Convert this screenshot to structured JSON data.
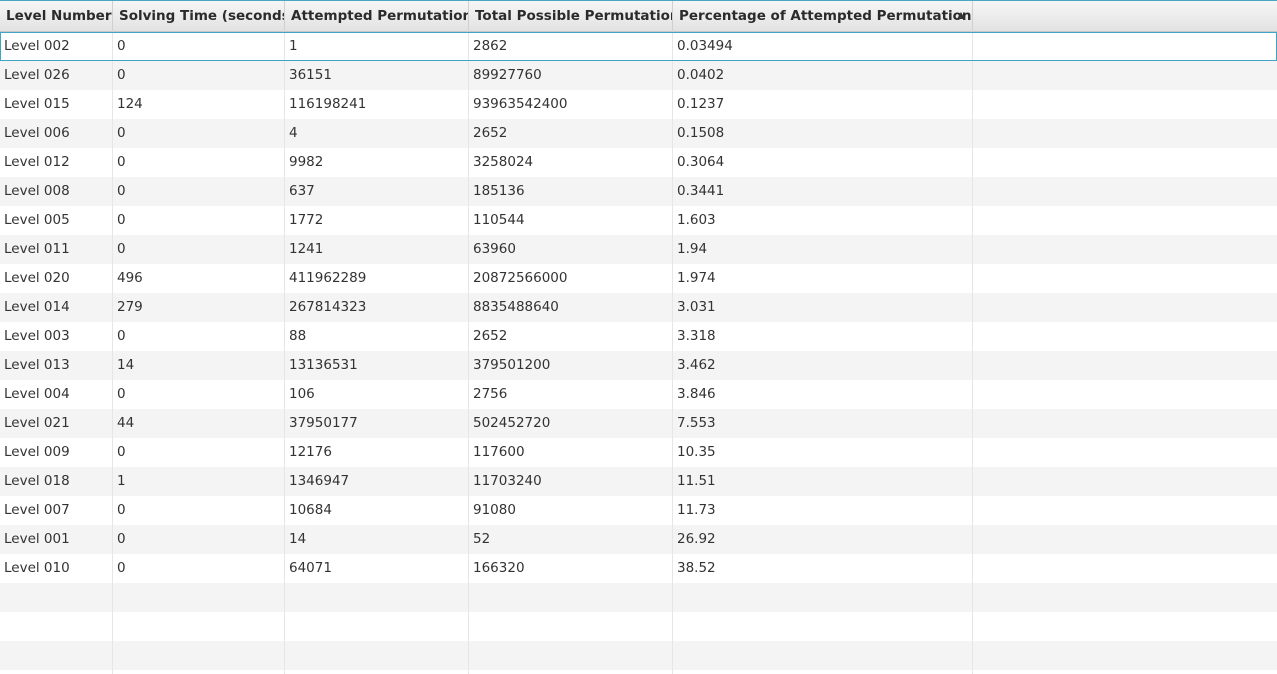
{
  "table": {
    "columns": [
      "Level Number",
      "Solving Time (seconds)",
      "Attempted Permutations",
      "Total Possible Permutations",
      "Percentage of Attempted Permutations"
    ],
    "sorted_column": "Percentage of Attempted Permutations",
    "sort_direction": "ascending",
    "selected_row": "Level 002",
    "rows": [
      [
        "Level 002",
        "0",
        "1",
        "2862",
        "0.03494"
      ],
      [
        "Level 026",
        "0",
        "36151",
        "89927760",
        "0.0402"
      ],
      [
        "Level 015",
        "124",
        "116198241",
        "93963542400",
        "0.1237"
      ],
      [
        "Level 006",
        "0",
        "4",
        "2652",
        "0.1508"
      ],
      [
        "Level 012",
        "0",
        "9982",
        "3258024",
        "0.3064"
      ],
      [
        "Level 008",
        "0",
        "637",
        "185136",
        "0.3441"
      ],
      [
        "Level 005",
        "0",
        "1772",
        "110544",
        "1.603"
      ],
      [
        "Level 011",
        "0",
        "1241",
        "63960",
        "1.94"
      ],
      [
        "Level 020",
        "496",
        "411962289",
        "20872566000",
        "1.974"
      ],
      [
        "Level 014",
        "279",
        "267814323",
        "8835488640",
        "3.031"
      ],
      [
        "Level 003",
        "0",
        "88",
        "2652",
        "3.318"
      ],
      [
        "Level 013",
        "14",
        "13136531",
        "379501200",
        "3.462"
      ],
      [
        "Level 004",
        "0",
        "106",
        "2756",
        "3.846"
      ],
      [
        "Level 021",
        "44",
        "37950177",
        "502452720",
        "7.553"
      ],
      [
        "Level 009",
        "0",
        "12176",
        "117600",
        "10.35"
      ],
      [
        "Level 018",
        "1",
        "1346947",
        "11703240",
        "11.51"
      ],
      [
        "Level 007",
        "0",
        "10684",
        "91080",
        "11.73"
      ],
      [
        "Level 001",
        "0",
        "14",
        "52",
        "26.92"
      ],
      [
        "Level 010",
        "0",
        "64071",
        "166320",
        "38.52"
      ]
    ]
  },
  "colors": {
    "selection_border": "#41a3c6",
    "header_background": "#e8e8e8",
    "row_alternate": "#f4f4f4"
  },
  "icons": {
    "sort": "sort-ascending-icon"
  }
}
